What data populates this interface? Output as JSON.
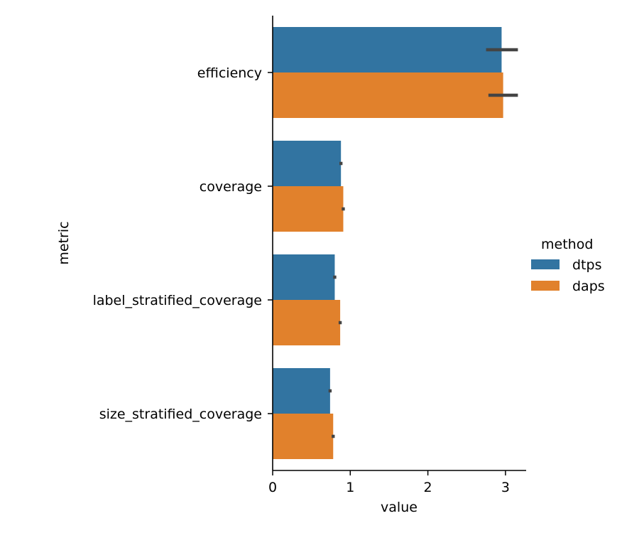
{
  "chart_data": {
    "type": "bar",
    "orientation": "horizontal",
    "categories": [
      "efficiency",
      "coverage",
      "label_stratified_coverage",
      "size_stratified_coverage"
    ],
    "series": [
      {
        "name": "dtps",
        "color": "#3274a1",
        "values": [
          2.95,
          0.88,
          0.8,
          0.74
        ],
        "ci": [
          [
            2.75,
            3.16
          ],
          [
            0.86,
            0.9
          ],
          [
            0.78,
            0.82
          ],
          [
            0.72,
            0.76
          ]
        ]
      },
      {
        "name": "daps",
        "color": "#e1812c",
        "values": [
          2.97,
          0.91,
          0.87,
          0.78
        ],
        "ci": [
          [
            2.78,
            3.16
          ],
          [
            0.89,
            0.93
          ],
          [
            0.85,
            0.89
          ],
          [
            0.76,
            0.8
          ]
        ]
      }
    ],
    "xlabel": "value",
    "ylabel": "metric",
    "xlim": [
      0,
      3.3
    ],
    "xticks": [
      "0",
      "1",
      "2",
      "3"
    ],
    "grid": false,
    "legend": {
      "title": "method",
      "placement": "right"
    },
    "errorbar_color": "#444444"
  }
}
